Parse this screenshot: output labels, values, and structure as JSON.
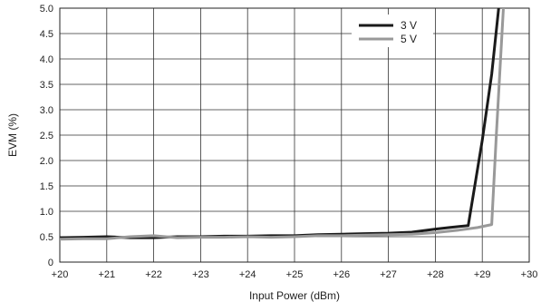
{
  "chart_data": {
    "type": "line",
    "xlabel": "Input Power (dBm)",
    "ylabel": "EVM (%)",
    "xlim": [
      20,
      30
    ],
    "ylim": [
      0,
      5.0
    ],
    "x_tick_labels": [
      "+20",
      "+21",
      "+22",
      "+23",
      "+24",
      "+25",
      "+26",
      "+27",
      "+28",
      "+29",
      "+30"
    ],
    "y_tick_labels": [
      "0",
      "0.5",
      "1.0",
      "1.5",
      "2.0",
      "2.5",
      "3.0",
      "3.5",
      "4.0",
      "4.5",
      "5.0"
    ],
    "grid": true,
    "legend_position": "top-right",
    "series": [
      {
        "name": "3 V",
        "color": "#1a1a1a",
        "x": [
          20.0,
          20.5,
          21.0,
          21.5,
          22.0,
          22.5,
          23.0,
          23.5,
          24.0,
          24.5,
          25.0,
          25.5,
          26.0,
          26.5,
          27.0,
          27.5,
          28.0,
          28.3,
          28.7,
          29.0,
          29.2,
          29.35
        ],
        "y": [
          0.48,
          0.49,
          0.5,
          0.48,
          0.48,
          0.5,
          0.5,
          0.51,
          0.51,
          0.52,
          0.52,
          0.54,
          0.55,
          0.56,
          0.57,
          0.59,
          0.65,
          0.68,
          0.72,
          2.4,
          3.7,
          5.0
        ]
      },
      {
        "name": "5 V",
        "color": "#999999",
        "x": [
          20.0,
          20.5,
          21.0,
          21.5,
          22.0,
          22.5,
          23.0,
          23.5,
          24.0,
          24.5,
          25.0,
          25.5,
          26.0,
          26.5,
          27.0,
          27.5,
          28.0,
          28.5,
          28.9,
          29.2,
          29.3,
          29.45
        ],
        "y": [
          0.45,
          0.46,
          0.46,
          0.5,
          0.52,
          0.48,
          0.49,
          0.49,
          0.5,
          0.49,
          0.5,
          0.52,
          0.52,
          0.53,
          0.54,
          0.55,
          0.58,
          0.63,
          0.68,
          0.74,
          2.5,
          5.0
        ]
      }
    ]
  }
}
